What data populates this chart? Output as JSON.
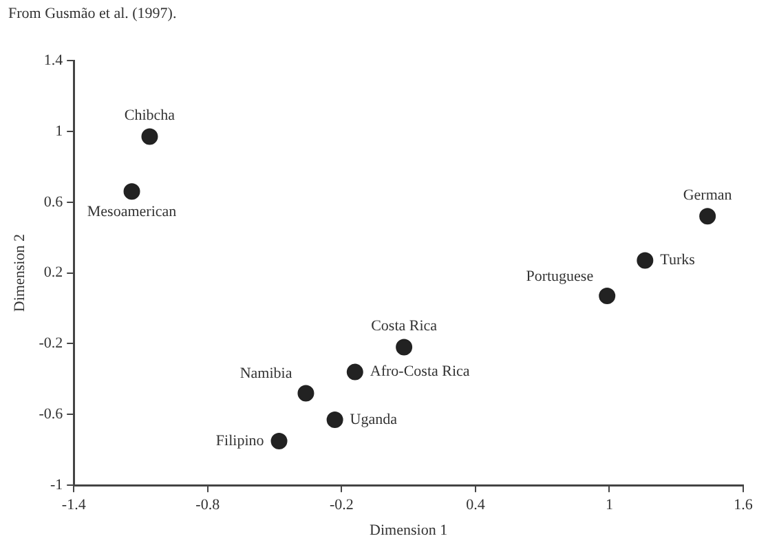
{
  "chart_data": {
    "type": "scatter",
    "xlabel": "Dimension 1",
    "ylabel": "Dimension 2",
    "x": [
      -1.06,
      -1.14,
      1.44,
      1.16,
      0.99,
      0.08,
      -0.14,
      -0.36,
      -0.23,
      -0.48
    ],
    "series": [
      {
        "color": "#222222",
        "values": [
          0.97,
          0.66,
          0.52,
          0.27,
          0.07,
          -0.22,
          -0.36,
          -0.48,
          -0.63,
          -0.75
        ]
      }
    ],
    "xlim": [
      -1.4,
      1.6
    ],
    "xticks": [
      -1.4,
      -0.8,
      -0.2,
      0.4,
      1,
      1.6
    ],
    "ylim": [
      -1,
      1.4
    ],
    "yticks": [
      -1,
      -0.6,
      -0.2,
      0.2,
      0.6,
      1,
      1.4
    ],
    "grid": false,
    "legend": false,
    "marker": "circle",
    "annotations": [
      "From Gusmão et al. (1997).",
      {
        "text": "Chibcha",
        "x": -1.06,
        "y": 0.97
      },
      {
        "text": "Mesoamerican",
        "x": -1.14,
        "y": 0.66
      },
      {
        "text": "German",
        "x": 1.44,
        "y": 0.52
      },
      {
        "text": "Turks",
        "x": 1.16,
        "y": 0.27
      },
      {
        "text": "Portuguese",
        "x": 0.99,
        "y": 0.07
      },
      {
        "text": "Costa Rica",
        "x": 0.08,
        "y": -0.22
      },
      {
        "text": "Afro-Costa Rica",
        "x": -0.14,
        "y": -0.36
      },
      {
        "text": "Namibia",
        "x": -0.36,
        "y": -0.48
      },
      {
        "text": "Uganda",
        "x": -0.23,
        "y": -0.63
      },
      {
        "text": "Filipino",
        "x": -0.48,
        "y": -0.75
      }
    ]
  }
}
